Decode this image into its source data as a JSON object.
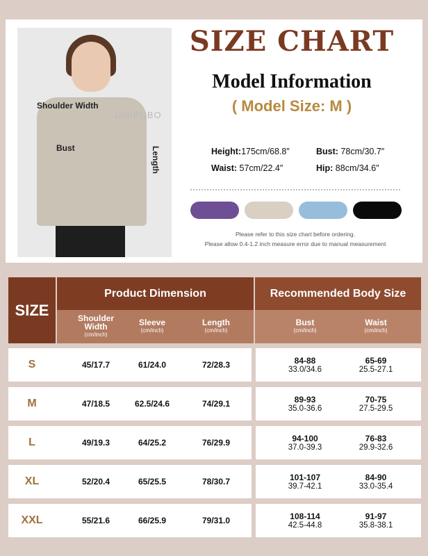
{
  "header": {
    "title": "SIZE CHART",
    "model_info": "Model Information",
    "model_size": "( Model Size: M )",
    "stats": [
      {
        "label": "Height:",
        "value": "175cm/68.8″"
      },
      {
        "label": "Bust:",
        "value": " 78cm/30.7″"
      },
      {
        "label": "Waist:",
        "value": " 57cm/22.4″"
      },
      {
        "label": "Hip:",
        "value": " 88cm/34.6″"
      }
    ],
    "colors": [
      "#6e4f96",
      "#d9cfc2",
      "#97bddc",
      "#0a0a0a"
    ],
    "notes": [
      "Please refer to this size chart before ordering.",
      "Please allow 0.4-1.2 inch measure error due to manual measurement"
    ]
  },
  "photo": {
    "labels": {
      "shoulder": "Shoulder Width",
      "bust": "Bust",
      "length": "Length"
    },
    "watermark": "UMIPUBO"
  },
  "table": {
    "size_header": "SIZE",
    "product_header": "Product Dimension",
    "recommended_header": "Recommended Body Size",
    "columns": [
      {
        "name": "Shoulder Width",
        "unit": "(cm/inch)"
      },
      {
        "name": "Sleeve",
        "unit": "(cm/inch)"
      },
      {
        "name": "Length",
        "unit": "(cm/inch)"
      },
      {
        "name": "Bust",
        "unit": "(cm/inch)"
      },
      {
        "name": "Waist",
        "unit": "(cm/inch)"
      }
    ],
    "rows": [
      {
        "size": "S",
        "shoulder": "45/17.7",
        "sleeve": "61/24.0",
        "length": "72/28.3",
        "bust_cm": "84-88",
        "bust_in": "33.0/34.6",
        "waist_cm": "65-69",
        "waist_in": "25.5-27.1"
      },
      {
        "size": "M",
        "shoulder": "47/18.5",
        "sleeve": "62.5/24.6",
        "length": "74/29.1",
        "bust_cm": "89-93",
        "bust_in": "35.0-36.6",
        "waist_cm": "70-75",
        "waist_in": "27.5-29.5"
      },
      {
        "size": "L",
        "shoulder": "49/19.3",
        "sleeve": "64/25.2",
        "length": "76/29.9",
        "bust_cm": "94-100",
        "bust_in": "37.0-39.3",
        "waist_cm": "76-83",
        "waist_in": "29.9-32.6"
      },
      {
        "size": "XL",
        "shoulder": "52/20.4",
        "sleeve": "65/25.5",
        "length": "78/30.7",
        "bust_cm": "101-107",
        "bust_in": "39.7-42.1",
        "waist_cm": "84-90",
        "waist_in": "33.0-35.4"
      },
      {
        "size": "XXL",
        "shoulder": "55/21.6",
        "sleeve": "66/25.9",
        "length": "79/31.0",
        "bust_cm": "108-114",
        "bust_in": "42.5-44.8",
        "waist_cm": "91-97",
        "waist_in": "35.8-38.1"
      }
    ]
  }
}
